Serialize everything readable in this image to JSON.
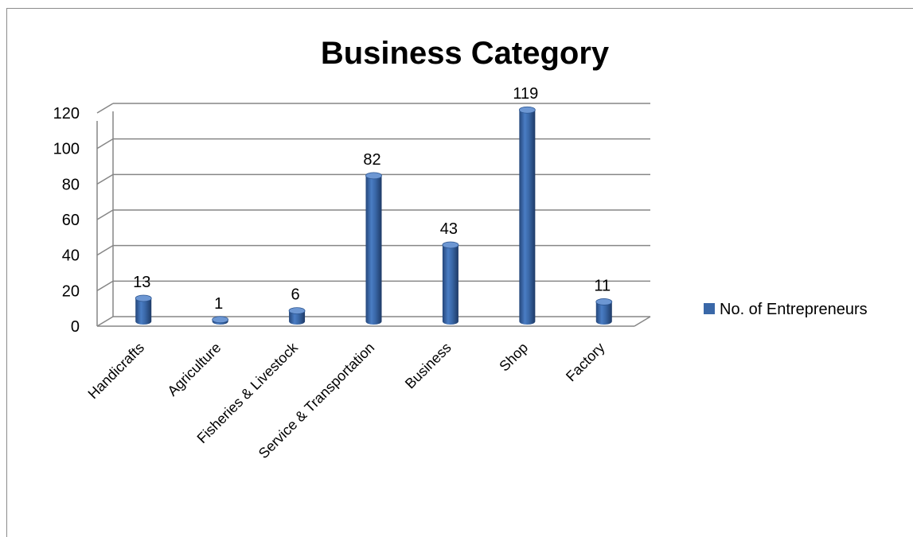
{
  "chart_data": {
    "type": "bar",
    "title": "Business Category",
    "categories": [
      "Handicrafts",
      "Agriculture",
      "Fisheries & Livestock",
      "Service & Transportation",
      "Business",
      "Shop",
      "Factory"
    ],
    "series": [
      {
        "name": "No. of Entrepreneurs",
        "values": [
          13,
          1,
          6,
          82,
          43,
          119,
          11
        ],
        "color": "#3a68a8"
      }
    ],
    "xlabel": "",
    "ylabel": "",
    "ylim": [
      0,
      120
    ],
    "yticks": [
      "0",
      "20",
      "40",
      "60",
      "80",
      "100",
      "120"
    ],
    "grid": true,
    "legend": "right",
    "style": "3d-cylinder"
  }
}
